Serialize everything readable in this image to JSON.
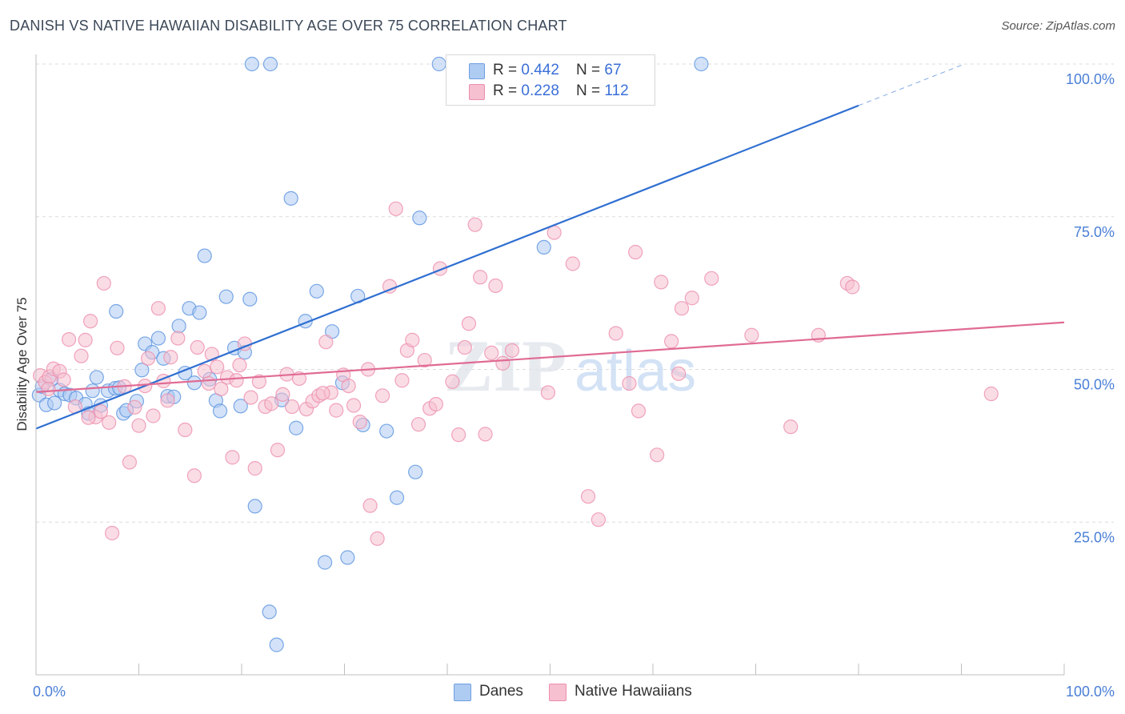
{
  "title": "DANISH VS NATIVE HAWAIIAN DISABILITY AGE OVER 75 CORRELATION CHART",
  "source": "Source: ZipAtlas.com",
  "watermark": {
    "zip": "ZIP",
    "atlas": "atlas"
  },
  "legend_box": {
    "rows": [
      {
        "r_label": "R = ",
        "r_value": "0.442",
        "n_label": "N = ",
        "n_value": "67",
        "color": "#aecbf2"
      },
      {
        "r_label": "R = ",
        "r_value": "0.228",
        "n_label": "N = ",
        "n_value": "112",
        "color": "#f6c0d0"
      }
    ]
  },
  "bottom_legend": [
    {
      "label": "Danes",
      "color": "#aecbf2"
    },
    {
      "label": "Native Hawaiians",
      "color": "#f6c0d0"
    }
  ],
  "chart_data": {
    "type": "scatter",
    "title": "DANISH VS NATIVE HAWAIIAN DISABILITY AGE OVER 75 CORRELATION CHART",
    "xlabel": "",
    "ylabel": "Disability Age Over 75",
    "xlim": [
      0,
      100
    ],
    "ylim": [
      0,
      100
    ],
    "x_tick_labels": [
      "0.0%",
      "100.0%"
    ],
    "y_tick_labels": [
      "25.0%",
      "50.0%",
      "75.0%",
      "100.0%"
    ],
    "y_ticks": [
      25,
      50,
      75,
      100
    ],
    "grid": true,
    "legend_position": "top-center",
    "series": [
      {
        "name": "Danes",
        "color": "#5b93e0",
        "fill": "#aecbf2",
        "trend_color": "#2f6fd1",
        "trend": {
          "x0": 0,
          "y0": 40.3,
          "x1": 80,
          "y1": 93.2,
          "dash_to_x": 90,
          "dash_to_y": 99.8
        },
        "points": [
          [
            0.3,
            45.8
          ],
          [
            1.0,
            44.2
          ],
          [
            1.5,
            48.4
          ],
          [
            1.8,
            44.5
          ],
          [
            2.3,
            46.6
          ],
          [
            2.8,
            46.0
          ],
          [
            3.3,
            45.8
          ],
          [
            3.9,
            45.3
          ],
          [
            4.8,
            44.3
          ],
          [
            5.1,
            42.8
          ],
          [
            5.5,
            46.5
          ],
          [
            5.9,
            48.7
          ],
          [
            6.3,
            44.1
          ],
          [
            7.0,
            46.5
          ],
          [
            7.7,
            46.9
          ],
          [
            7.8,
            59.5
          ],
          [
            8.5,
            42.8
          ],
          [
            8.8,
            43.3
          ],
          [
            9.8,
            44.8
          ],
          [
            10.3,
            49.9
          ],
          [
            10.6,
            54.2
          ],
          [
            11.3,
            52.8
          ],
          [
            11.9,
            55.1
          ],
          [
            12.4,
            51.8
          ],
          [
            12.8,
            45.6
          ],
          [
            13.4,
            45.5
          ],
          [
            13.9,
            57.1
          ],
          [
            14.5,
            49.4
          ],
          [
            14.9,
            60.0
          ],
          [
            15.4,
            47.8
          ],
          [
            15.9,
            59.3
          ],
          [
            16.4,
            68.6
          ],
          [
            16.9,
            48.4
          ],
          [
            17.5,
            44.9
          ],
          [
            17.9,
            43.2
          ],
          [
            18.5,
            61.9
          ],
          [
            19.3,
            53.5
          ],
          [
            19.9,
            44.0
          ],
          [
            20.3,
            52.8
          ],
          [
            20.8,
            61.5
          ],
          [
            21.3,
            27.6
          ],
          [
            22.7,
            10.3
          ],
          [
            23.4,
            4.9
          ],
          [
            24.8,
            78.0
          ],
          [
            25.3,
            40.4
          ],
          [
            26.2,
            57.9
          ],
          [
            27.3,
            62.8
          ],
          [
            28.1,
            18.4
          ],
          [
            28.8,
            56.2
          ],
          [
            29.8,
            47.8
          ],
          [
            30.3,
            19.2
          ],
          [
            31.3,
            62.0
          ],
          [
            31.8,
            40.9
          ],
          [
            34.1,
            39.9
          ],
          [
            35.1,
            29.0
          ],
          [
            36.9,
            33.2
          ],
          [
            37.3,
            74.8
          ],
          [
            49.4,
            70.0
          ],
          [
            21.0,
            100.0
          ],
          [
            22.8,
            100.0
          ],
          [
            39.2,
            100.0
          ],
          [
            47.8,
            100.0
          ],
          [
            48.1,
            100.0
          ],
          [
            64.7,
            100.0
          ],
          [
            0.6,
            47.2
          ],
          [
            8.1,
            47.0
          ],
          [
            23.9,
            45.0
          ]
        ]
      },
      {
        "name": "Native Hawaiians",
        "color": "#ec8eac",
        "fill": "#f6c0d0",
        "trend_color": "#e06b94",
        "trend": {
          "x0": 0,
          "y0": 46.3,
          "x1": 100,
          "y1": 57.7
        },
        "points": [
          [
            0.4,
            49.0
          ],
          [
            0.9,
            47.9
          ],
          [
            1.3,
            48.8
          ],
          [
            1.7,
            50.1
          ],
          [
            2.3,
            49.7
          ],
          [
            2.7,
            48.3
          ],
          [
            3.2,
            54.9
          ],
          [
            3.8,
            43.9
          ],
          [
            4.4,
            52.2
          ],
          [
            4.8,
            54.8
          ],
          [
            5.3,
            57.9
          ],
          [
            5.8,
            42.2
          ],
          [
            6.3,
            43.1
          ],
          [
            6.6,
            64.1
          ],
          [
            7.1,
            41.3
          ],
          [
            7.4,
            23.2
          ],
          [
            7.9,
            53.5
          ],
          [
            8.6,
            47.2
          ],
          [
            9.1,
            34.8
          ],
          [
            9.6,
            43.8
          ],
          [
            10.0,
            40.8
          ],
          [
            10.6,
            47.3
          ],
          [
            10.9,
            51.8
          ],
          [
            11.4,
            42.4
          ],
          [
            11.9,
            60.0
          ],
          [
            12.4,
            48.1
          ],
          [
            12.8,
            44.9
          ],
          [
            13.8,
            55.1
          ],
          [
            14.5,
            40.1
          ],
          [
            15.4,
            32.6
          ],
          [
            15.7,
            53.6
          ],
          [
            16.4,
            49.7
          ],
          [
            17.1,
            52.5
          ],
          [
            17.6,
            50.4
          ],
          [
            18.0,
            46.8
          ],
          [
            18.6,
            48.7
          ],
          [
            19.1,
            35.6
          ],
          [
            19.8,
            50.7
          ],
          [
            20.3,
            54.2
          ],
          [
            20.9,
            45.4
          ],
          [
            21.3,
            33.8
          ],
          [
            21.7,
            48.0
          ],
          [
            22.3,
            43.9
          ],
          [
            22.9,
            44.4
          ],
          [
            23.5,
            36.8
          ],
          [
            24.0,
            45.9
          ],
          [
            24.4,
            49.2
          ],
          [
            24.9,
            43.9
          ],
          [
            25.6,
            48.5
          ],
          [
            26.3,
            43.5
          ],
          [
            26.9,
            44.8
          ],
          [
            27.5,
            45.7
          ],
          [
            28.2,
            54.5
          ],
          [
            28.7,
            46.2
          ],
          [
            29.2,
            43.3
          ],
          [
            29.9,
            49.1
          ],
          [
            30.4,
            47.3
          ],
          [
            30.9,
            44.1
          ],
          [
            31.5,
            41.4
          ],
          [
            32.3,
            50.0
          ],
          [
            32.5,
            27.7
          ],
          [
            33.2,
            22.3
          ],
          [
            33.7,
            45.7
          ],
          [
            34.4,
            63.6
          ],
          [
            35.0,
            76.3
          ],
          [
            35.6,
            48.2
          ],
          [
            36.1,
            53.1
          ],
          [
            36.6,
            54.8
          ],
          [
            37.2,
            41.0
          ],
          [
            37.8,
            51.5
          ],
          [
            38.3,
            43.6
          ],
          [
            38.9,
            44.3
          ],
          [
            39.3,
            66.5
          ],
          [
            40.5,
            48.0
          ],
          [
            41.1,
            39.3
          ],
          [
            41.7,
            53.6
          ],
          [
            42.1,
            57.5
          ],
          [
            42.7,
            73.7
          ],
          [
            43.2,
            65.1
          ],
          [
            43.7,
            39.4
          ],
          [
            44.3,
            52.7
          ],
          [
            44.7,
            63.7
          ],
          [
            45.4,
            51.0
          ],
          [
            46.3,
            53.1
          ],
          [
            49.8,
            46.2
          ],
          [
            50.4,
            72.4
          ],
          [
            52.2,
            67.3
          ],
          [
            53.7,
            29.2
          ],
          [
            54.7,
            25.4
          ],
          [
            56.4,
            55.9
          ],
          [
            57.7,
            47.7
          ],
          [
            58.3,
            69.2
          ],
          [
            58.6,
            43.2
          ],
          [
            60.4,
            36.0
          ],
          [
            60.8,
            64.3
          ],
          [
            61.8,
            54.6
          ],
          [
            62.5,
            49.3
          ],
          [
            62.8,
            60.0
          ],
          [
            63.8,
            61.7
          ],
          [
            65.7,
            64.9
          ],
          [
            69.6,
            55.6
          ],
          [
            73.4,
            40.6
          ],
          [
            76.1,
            55.6
          ],
          [
            78.9,
            64.1
          ],
          [
            79.4,
            63.5
          ],
          [
            92.9,
            46.0
          ],
          [
            1.2,
            46.8
          ],
          [
            5.1,
            42.1
          ],
          [
            13.1,
            52.0
          ],
          [
            16.8,
            47.7
          ],
          [
            19.5,
            48.2
          ],
          [
            27.9,
            46.1
          ]
        ]
      }
    ]
  }
}
